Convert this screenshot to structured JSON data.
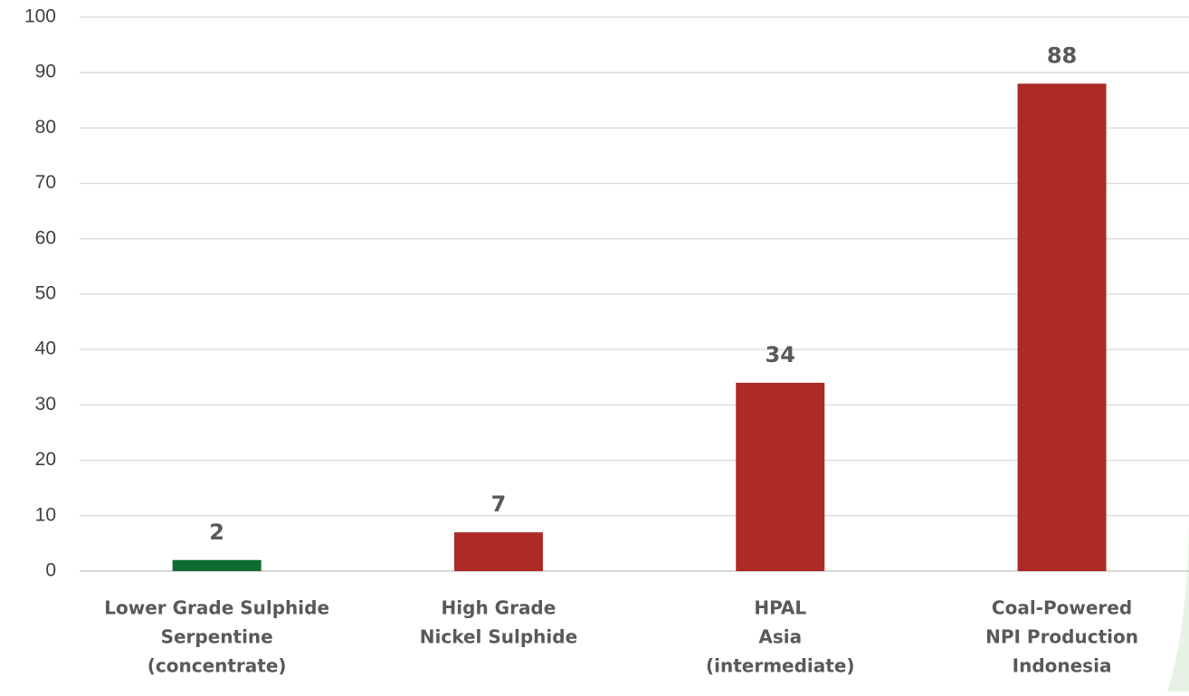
{
  "chart_data": {
    "type": "bar",
    "categories": [
      [
        "Lower Grade Sulphide",
        "Serpentine",
        "(concentrate)"
      ],
      [
        "High Grade",
        "Nickel Sulphide"
      ],
      [
        "HPAL",
        "Asia",
        "(intermediate)"
      ],
      [
        "Coal-Powered",
        "NPI Production",
        "Indonesia"
      ]
    ],
    "values": [
      2,
      7,
      34,
      88
    ],
    "colors": [
      "#0e6b32",
      "#ad2a26",
      "#ad2a26",
      "#ad2a26"
    ],
    "ylim": [
      0,
      100
    ],
    "yticks": [
      0,
      10,
      20,
      30,
      40,
      50,
      60,
      70,
      80,
      90,
      100
    ],
    "grid": true
  }
}
